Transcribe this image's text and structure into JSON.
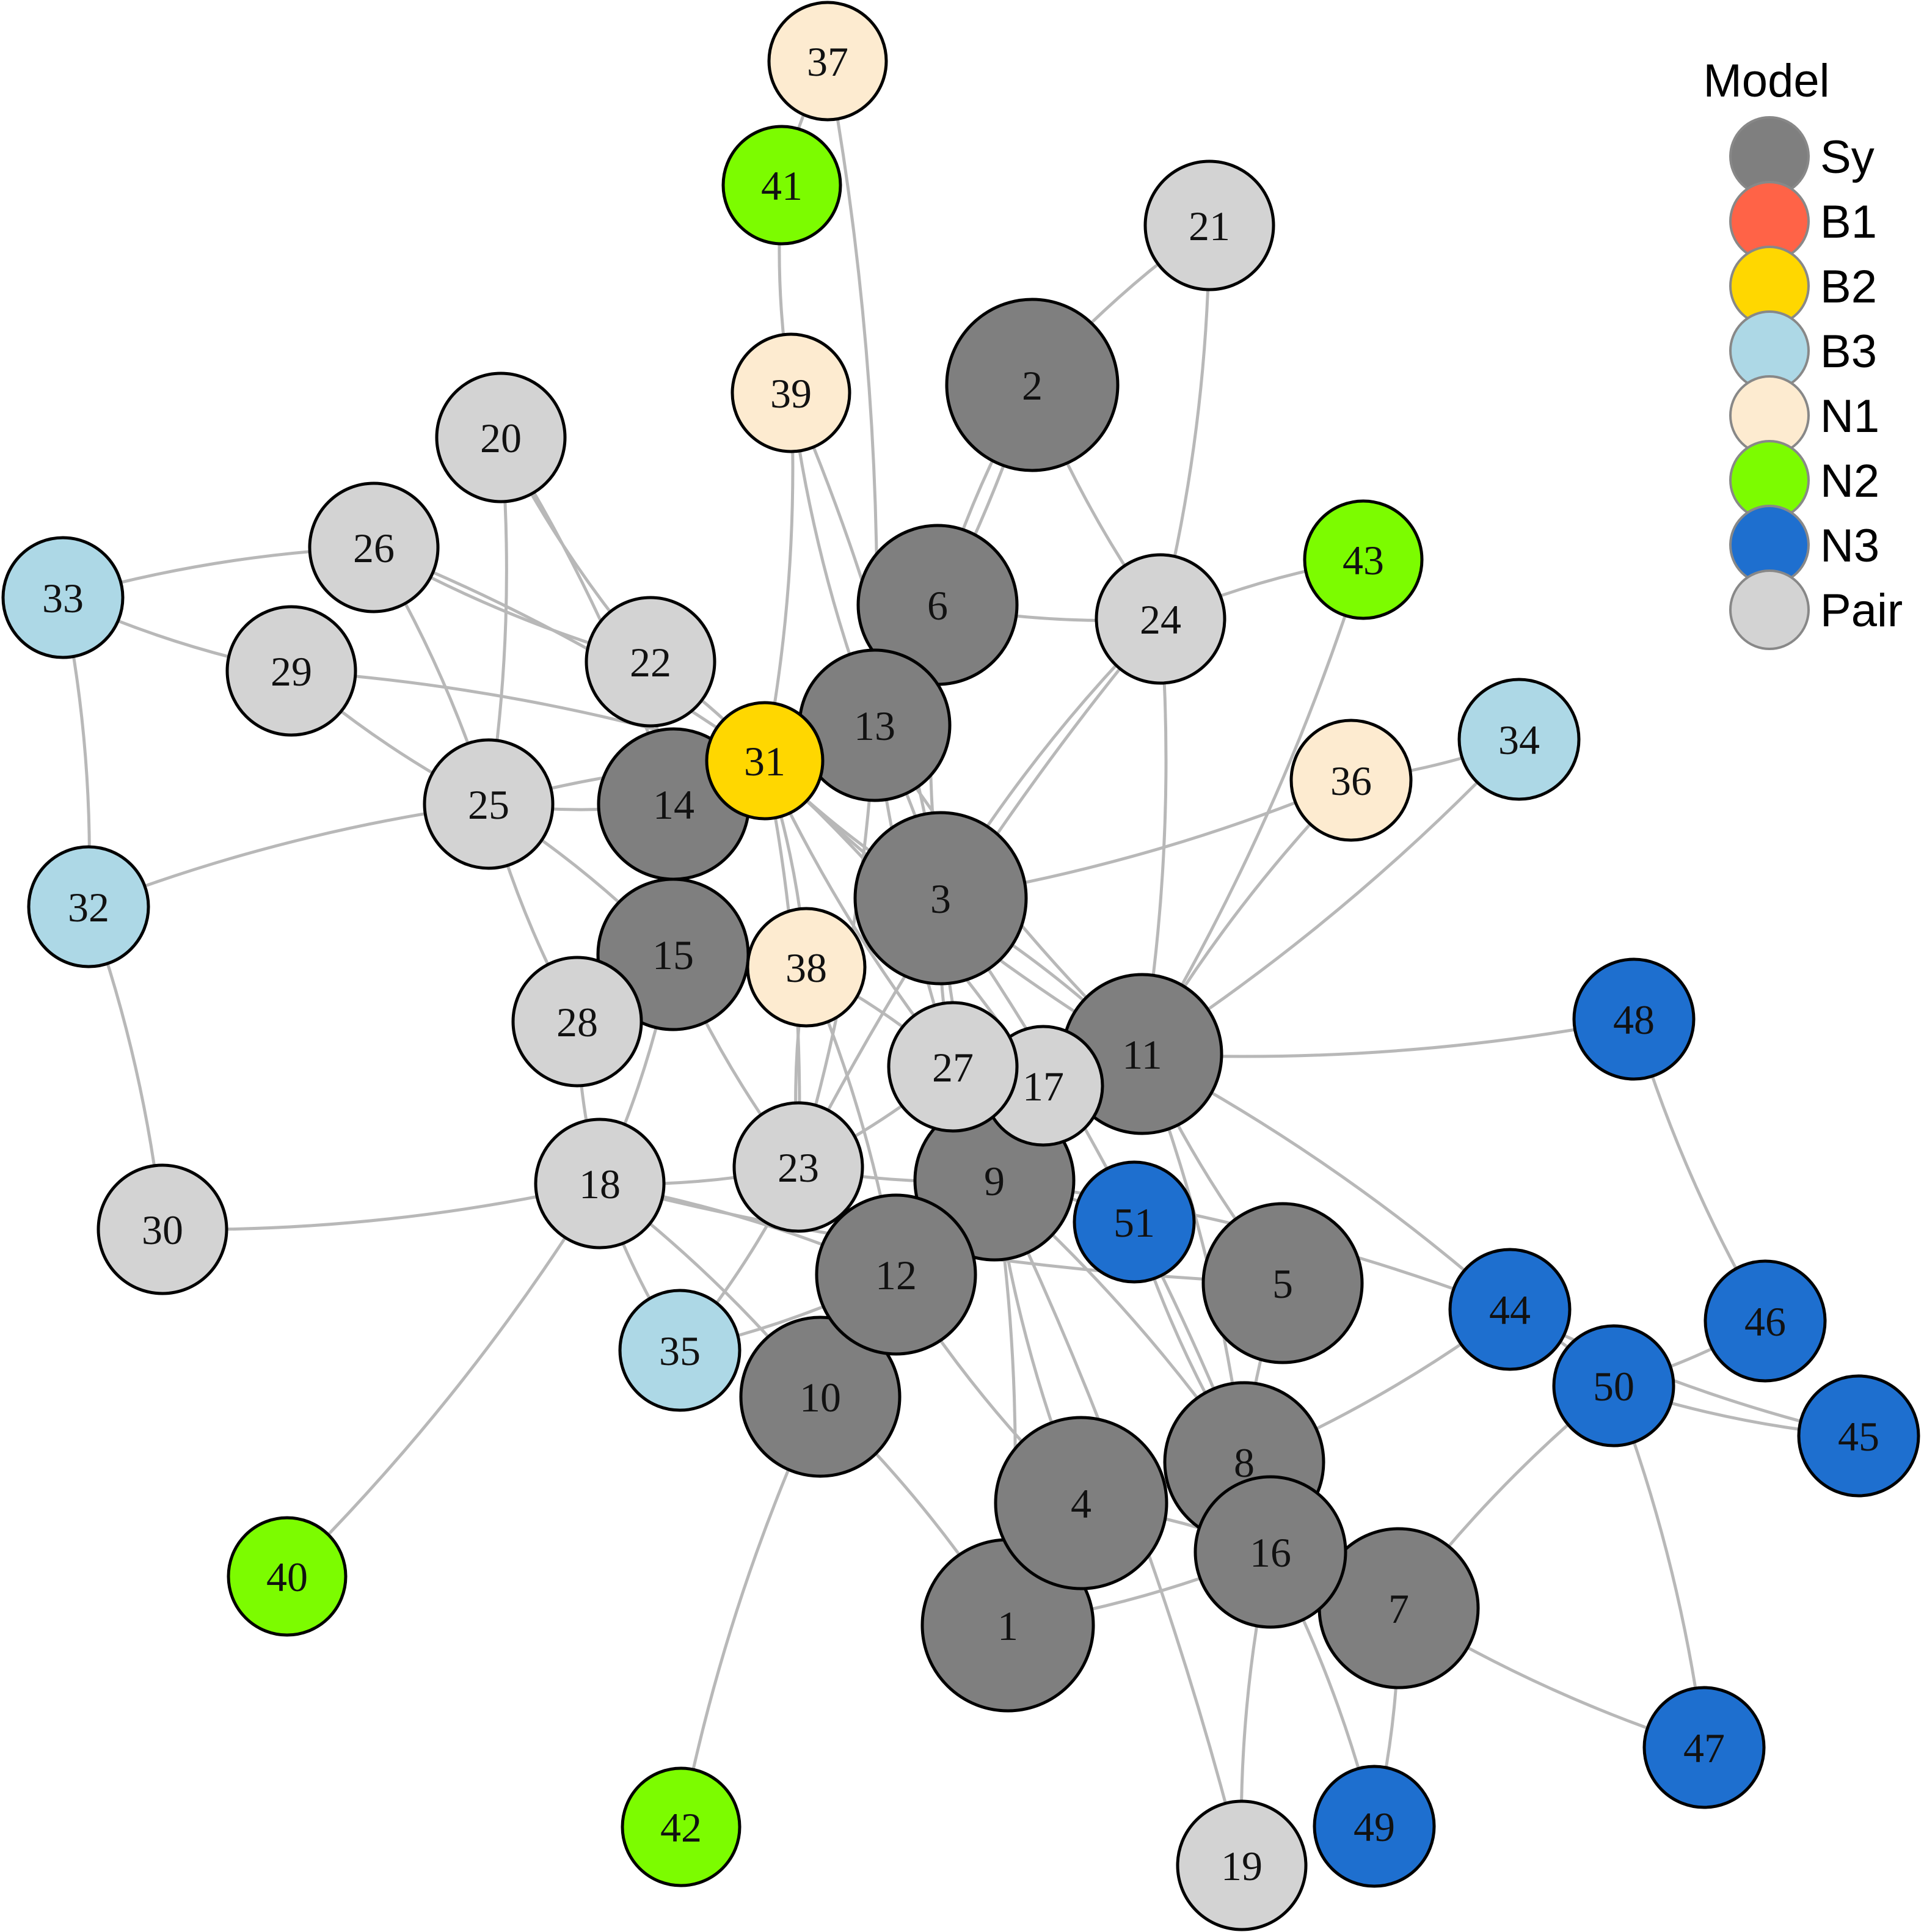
{
  "legend": {
    "title": "Model",
    "items": [
      {
        "key": "Sy",
        "label": "Sy",
        "color": "#7f7f7f"
      },
      {
        "key": "B1",
        "label": "B1",
        "color": "#ff6347"
      },
      {
        "key": "B2",
        "label": "B2",
        "color": "#ffd700"
      },
      {
        "key": "B3",
        "label": "B3",
        "color": "#add8e6"
      },
      {
        "key": "N1",
        "label": "N1",
        "color": "#fdebd0"
      },
      {
        "key": "N2",
        "label": "N2",
        "color": "#7cfc00"
      },
      {
        "key": "N3",
        "label": "N3",
        "color": "#1e6fcf"
      },
      {
        "key": "Pair",
        "label": "Pair",
        "color": "#d3d3d3"
      }
    ]
  },
  "nodes": [
    {
      "id": "1",
      "label": "1",
      "model": "Sy"
    },
    {
      "id": "2",
      "label": "2",
      "model": "Sy"
    },
    {
      "id": "3",
      "label": "3",
      "model": "Sy"
    },
    {
      "id": "4",
      "label": "4",
      "model": "Sy"
    },
    {
      "id": "5",
      "label": "5",
      "model": "Sy"
    },
    {
      "id": "6",
      "label": "6",
      "model": "Sy"
    },
    {
      "id": "7",
      "label": "7",
      "model": "Sy"
    },
    {
      "id": "8",
      "label": "8",
      "model": "Sy"
    },
    {
      "id": "9",
      "label": "9",
      "model": "Sy"
    },
    {
      "id": "10",
      "label": "10",
      "model": "Sy"
    },
    {
      "id": "11",
      "label": "11",
      "model": "Sy"
    },
    {
      "id": "12",
      "label": "12",
      "model": "Sy"
    },
    {
      "id": "13",
      "label": "13",
      "model": "Sy"
    },
    {
      "id": "14",
      "label": "14",
      "model": "Sy"
    },
    {
      "id": "15",
      "label": "15",
      "model": "Sy"
    },
    {
      "id": "16",
      "label": "16",
      "model": "Sy"
    },
    {
      "id": "17",
      "label": "17",
      "model": "Pair"
    },
    {
      "id": "18",
      "label": "18",
      "model": "Pair"
    },
    {
      "id": "19",
      "label": "19",
      "model": "Pair"
    },
    {
      "id": "20",
      "label": "20",
      "model": "Pair"
    },
    {
      "id": "21",
      "label": "21",
      "model": "Pair"
    },
    {
      "id": "22",
      "label": "22",
      "model": "Pair"
    },
    {
      "id": "23",
      "label": "23",
      "model": "Pair"
    },
    {
      "id": "24",
      "label": "24",
      "model": "Pair"
    },
    {
      "id": "25",
      "label": "25",
      "model": "Pair"
    },
    {
      "id": "26",
      "label": "26",
      "model": "Pair"
    },
    {
      "id": "27",
      "label": "27",
      "model": "Pair"
    },
    {
      "id": "28",
      "label": "28",
      "model": "Pair"
    },
    {
      "id": "29",
      "label": "29",
      "model": "Pair"
    },
    {
      "id": "30",
      "label": "30",
      "model": "Pair"
    },
    {
      "id": "31",
      "label": "31",
      "model": "B2"
    },
    {
      "id": "32",
      "label": "32",
      "model": "B3"
    },
    {
      "id": "33",
      "label": "33",
      "model": "B3"
    },
    {
      "id": "34",
      "label": "34",
      "model": "B3"
    },
    {
      "id": "35",
      "label": "35",
      "model": "B3"
    },
    {
      "id": "36",
      "label": "36",
      "model": "N1"
    },
    {
      "id": "37",
      "label": "37",
      "model": "N1"
    },
    {
      "id": "38",
      "label": "38",
      "model": "N1"
    },
    {
      "id": "39",
      "label": "39",
      "model": "N1"
    },
    {
      "id": "40",
      "label": "40",
      "model": "N2"
    },
    {
      "id": "41",
      "label": "41",
      "model": "N2"
    },
    {
      "id": "42",
      "label": "42",
      "model": "N2"
    },
    {
      "id": "43",
      "label": "43",
      "model": "N2"
    },
    {
      "id": "44",
      "label": "44",
      "model": "N3"
    },
    {
      "id": "45",
      "label": "45",
      "model": "N3"
    },
    {
      "id": "46",
      "label": "46",
      "model": "N3"
    },
    {
      "id": "47",
      "label": "47",
      "model": "N3"
    },
    {
      "id": "48",
      "label": "48",
      "model": "N3"
    },
    {
      "id": "49",
      "label": "49",
      "model": "N3"
    },
    {
      "id": "50",
      "label": "50",
      "model": "N3"
    },
    {
      "id": "51",
      "label": "51",
      "model": "N3"
    }
  ],
  "edges": [
    [
      "37",
      "41"
    ],
    [
      "37",
      "13"
    ],
    [
      "41",
      "39"
    ],
    [
      "39",
      "31"
    ],
    [
      "39",
      "13"
    ],
    [
      "39",
      "3"
    ],
    [
      "21",
      "2"
    ],
    [
      "21",
      "24"
    ],
    [
      "2",
      "6"
    ],
    [
      "2",
      "13"
    ],
    [
      "2",
      "24"
    ],
    [
      "20",
      "25"
    ],
    [
      "20",
      "22"
    ],
    [
      "20",
      "14"
    ],
    [
      "26",
      "33"
    ],
    [
      "26",
      "25"
    ],
    [
      "26",
      "22"
    ],
    [
      "26",
      "31"
    ],
    [
      "33",
      "29"
    ],
    [
      "33",
      "32"
    ],
    [
      "29",
      "25"
    ],
    [
      "29",
      "31"
    ],
    [
      "22",
      "14"
    ],
    [
      "22",
      "31"
    ],
    [
      "6",
      "24"
    ],
    [
      "6",
      "31"
    ],
    [
      "6",
      "3"
    ],
    [
      "24",
      "43"
    ],
    [
      "24",
      "3"
    ],
    [
      "24",
      "11"
    ],
    [
      "24",
      "23"
    ],
    [
      "43",
      "11"
    ],
    [
      "36",
      "34"
    ],
    [
      "36",
      "3"
    ],
    [
      "36",
      "11"
    ],
    [
      "34",
      "11"
    ],
    [
      "25",
      "14"
    ],
    [
      "25",
      "31"
    ],
    [
      "25",
      "28"
    ],
    [
      "25",
      "15"
    ],
    [
      "25",
      "32"
    ],
    [
      "32",
      "30"
    ],
    [
      "13",
      "9"
    ],
    [
      "13",
      "23"
    ],
    [
      "13",
      "11"
    ],
    [
      "13",
      "3"
    ],
    [
      "14",
      "31"
    ],
    [
      "14",
      "15"
    ],
    [
      "31",
      "3"
    ],
    [
      "31",
      "17"
    ],
    [
      "31",
      "27"
    ],
    [
      "31",
      "38"
    ],
    [
      "31",
      "11"
    ],
    [
      "31",
      "23"
    ],
    [
      "3",
      "27"
    ],
    [
      "3",
      "11"
    ],
    [
      "3",
      "9"
    ],
    [
      "3",
      "8"
    ],
    [
      "15",
      "28"
    ],
    [
      "15",
      "18"
    ],
    [
      "15",
      "23"
    ],
    [
      "38",
      "27"
    ],
    [
      "38",
      "23"
    ],
    [
      "38",
      "12"
    ],
    [
      "28",
      "18"
    ],
    [
      "27",
      "17"
    ],
    [
      "27",
      "9"
    ],
    [
      "17",
      "11"
    ],
    [
      "11",
      "48"
    ],
    [
      "11",
      "44"
    ],
    [
      "11",
      "5"
    ],
    [
      "11",
      "8"
    ],
    [
      "48",
      "46"
    ],
    [
      "18",
      "30"
    ],
    [
      "18",
      "23"
    ],
    [
      "18",
      "40"
    ],
    [
      "18",
      "35"
    ],
    [
      "18",
      "12"
    ],
    [
      "18",
      "5"
    ],
    [
      "18",
      "10"
    ],
    [
      "23",
      "9"
    ],
    [
      "23",
      "35"
    ],
    [
      "23",
      "27"
    ],
    [
      "9",
      "51"
    ],
    [
      "9",
      "12"
    ],
    [
      "9",
      "8"
    ],
    [
      "9",
      "4"
    ],
    [
      "9",
      "1"
    ],
    [
      "51",
      "8"
    ],
    [
      "12",
      "10"
    ],
    [
      "12",
      "4"
    ],
    [
      "12",
      "35"
    ],
    [
      "10",
      "42"
    ],
    [
      "10",
      "1"
    ],
    [
      "5",
      "8"
    ],
    [
      "44",
      "50"
    ],
    [
      "44",
      "45"
    ],
    [
      "44",
      "8"
    ],
    [
      "44",
      "9"
    ],
    [
      "46",
      "50"
    ],
    [
      "50",
      "45"
    ],
    [
      "50",
      "47"
    ],
    [
      "50",
      "7"
    ],
    [
      "4",
      "16"
    ],
    [
      "4",
      "8"
    ],
    [
      "8",
      "16"
    ],
    [
      "16",
      "7"
    ],
    [
      "16",
      "1"
    ],
    [
      "16",
      "19"
    ],
    [
      "16",
      "49"
    ],
    [
      "7",
      "47"
    ],
    [
      "7",
      "49"
    ],
    [
      "19",
      "9"
    ]
  ]
}
